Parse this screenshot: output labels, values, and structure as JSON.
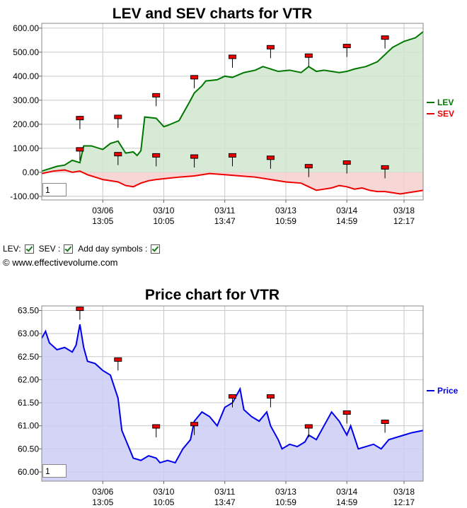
{
  "chart_data": [
    {
      "type": "area",
      "title": "LEV and SEV charts for VTR",
      "ylim": [
        -115,
        620
      ],
      "yticks": [
        "600.00",
        "500.00",
        "400.00",
        "300.00",
        "200.00",
        "100.00",
        "0.00",
        "-100.00"
      ],
      "ytick_values": [
        600,
        500,
        400,
        300,
        200,
        100,
        0,
        -100
      ],
      "xticks": [
        {
          "date": "03/06",
          "time": "13:05"
        },
        {
          "date": "03/10",
          "time": "10:05"
        },
        {
          "date": "03/11",
          "time": "13:47"
        },
        {
          "date": "03/13",
          "time": "10:59"
        },
        {
          "date": "03/14",
          "time": "14:59"
        },
        {
          "date": "03/18",
          "time": "12:17"
        }
      ],
      "grid": true,
      "legend_position": "right",
      "series": [
        {
          "name": "LEV",
          "color": "#007700",
          "fill": "#cfe6cf",
          "x": [
            0,
            2,
            4,
            6,
            8,
            10,
            11,
            13,
            16,
            18,
            20,
            22,
            24,
            25,
            26,
            27,
            30,
            32,
            33,
            36,
            39,
            40,
            42,
            43,
            46,
            48,
            50,
            53,
            56,
            58,
            60,
            62,
            65,
            68,
            70,
            72,
            74,
            76,
            78,
            80,
            82,
            85,
            88,
            90,
            92,
            95,
            98,
            100
          ],
          "y": [
            5,
            15,
            25,
            30,
            50,
            40,
            110,
            110,
            95,
            120,
            130,
            80,
            85,
            70,
            90,
            230,
            225,
            190,
            195,
            215,
            300,
            330,
            360,
            380,
            385,
            400,
            395,
            415,
            425,
            440,
            430,
            420,
            425,
            415,
            440,
            420,
            425,
            420,
            415,
            420,
            430,
            440,
            460,
            490,
            520,
            545,
            560,
            585
          ]
        },
        {
          "name": "SEV",
          "color": "#ee0000",
          "fill": "#f6cfcf",
          "x": [
            0,
            3,
            6,
            8,
            10,
            12,
            14,
            16,
            18,
            20,
            22,
            24,
            26,
            28,
            30,
            33,
            36,
            40,
            44,
            48,
            52,
            56,
            60,
            64,
            68,
            70,
            72,
            74,
            76,
            78,
            80,
            82,
            84,
            86,
            88,
            90,
            92,
            94,
            96,
            98,
            100
          ],
          "y": [
            -5,
            5,
            10,
            0,
            5,
            -10,
            -20,
            -30,
            -35,
            -40,
            -55,
            -60,
            -45,
            -35,
            -30,
            -25,
            -20,
            -15,
            -5,
            -10,
            -15,
            -20,
            -30,
            -40,
            -45,
            -60,
            -75,
            -70,
            -65,
            -55,
            -60,
            -70,
            -65,
            -75,
            -80,
            -80,
            -85,
            -90,
            -85,
            -80,
            -75
          ]
        }
      ],
      "day_markers": [
        {
          "x": 10,
          "lev": 180,
          "sev": 50
        },
        {
          "x": 20,
          "lev": 185,
          "sev": 30
        },
        {
          "x": 30,
          "lev": 275,
          "sev": 25
        },
        {
          "x": 40,
          "lev": 350,
          "sev": 20
        },
        {
          "x": 50,
          "lev": 435,
          "sev": 25
        },
        {
          "x": 60,
          "lev": 475,
          "sev": 15
        },
        {
          "x": 70,
          "lev": 440,
          "sev": -20
        },
        {
          "x": 80,
          "lev": 480,
          "sev": -5
        },
        {
          "x": 90,
          "lev": 515,
          "sev": -25
        }
      ],
      "zoom_value": "1"
    },
    {
      "type": "area",
      "title": "Price chart for VTR",
      "ylim": [
        59.8,
        63.6
      ],
      "yticks": [
        "63.50",
        "63.00",
        "62.50",
        "62.00",
        "61.50",
        "61.00",
        "60.50",
        "60.00"
      ],
      "ytick_values": [
        63.5,
        63.0,
        62.5,
        62.0,
        61.5,
        61.0,
        60.5,
        60.0
      ],
      "xticks": [
        {
          "date": "03/06",
          "time": "13:05"
        },
        {
          "date": "03/10",
          "time": "10:05"
        },
        {
          "date": "03/11",
          "time": "13:47"
        },
        {
          "date": "03/13",
          "time": "10:59"
        },
        {
          "date": "03/14",
          "time": "14:59"
        },
        {
          "date": "03/18",
          "time": "12:17"
        }
      ],
      "grid": true,
      "legend_position": "right",
      "series": [
        {
          "name": "Price",
          "color": "#0000ee",
          "fill": "#ccccf4",
          "x": [
            0,
            1,
            2,
            4,
            6,
            8,
            9,
            10,
            11,
            12,
            14,
            16,
            18,
            20,
            21,
            22,
            24,
            26,
            28,
            30,
            31,
            33,
            35,
            37,
            39,
            40,
            42,
            44,
            46,
            48,
            50,
            52,
            53,
            55,
            57,
            59,
            60,
            62,
            63,
            65,
            67,
            69,
            70,
            72,
            74,
            76,
            78,
            80,
            81,
            83,
            85,
            87,
            89,
            91,
            93,
            95,
            97,
            100
          ],
          "x_note": "",
          "y": [
            62.9,
            63.05,
            62.8,
            62.65,
            62.7,
            62.6,
            62.75,
            63.2,
            62.7,
            62.4,
            62.35,
            62.2,
            62.1,
            61.6,
            60.9,
            60.7,
            60.3,
            60.25,
            60.35,
            60.3,
            60.2,
            60.25,
            60.2,
            60.5,
            60.7,
            61.1,
            61.3,
            61.2,
            61.0,
            61.4,
            61.5,
            61.8,
            61.35,
            61.2,
            61.1,
            61.3,
            61.0,
            60.7,
            60.5,
            60.6,
            60.55,
            60.65,
            60.8,
            60.7,
            61.0,
            61.3,
            61.1,
            60.8,
            61.0,
            60.5,
            60.55,
            60.6,
            60.5,
            60.7,
            60.75,
            60.8,
            60.85,
            60.9
          ]
        }
      ],
      "day_markers": [
        {
          "x": 10,
          "y": 63.3
        },
        {
          "x": 20,
          "y": 62.2
        },
        {
          "x": 30,
          "y": 60.75
        },
        {
          "x": 40,
          "y": 60.8
        },
        {
          "x": 50,
          "y": 61.4
        },
        {
          "x": 60,
          "y": 61.4
        },
        {
          "x": 70,
          "y": 60.75
        },
        {
          "x": 80,
          "y": 61.05
        },
        {
          "x": 90,
          "y": 60.85
        }
      ],
      "zoom_value": "1"
    }
  ],
  "controls": {
    "lev_label": "LEV:",
    "sev_label": "SEV :",
    "day_symbols_label": "Add day symbols :",
    "lev_checked": true,
    "sev_checked": true,
    "day_symbols_checked": true
  },
  "copyright": "© www.effectivevolume.com"
}
